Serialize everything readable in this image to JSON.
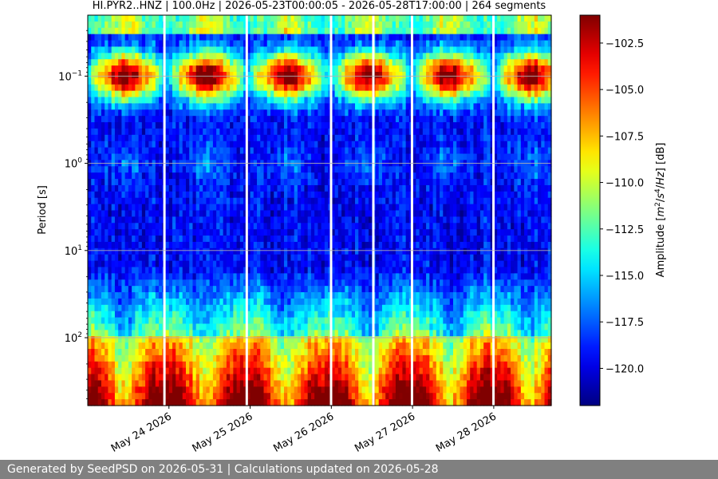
{
  "chart_data": {
    "type": "heatmap",
    "title": "HI.PYR2..HNZ | 100.0Hz | 2026-05-23T00:00:05 - 2026-05-28T17:00:00 | 264 segments",
    "xlabel": "",
    "ylabel": "Period [s]",
    "x_range": [
      "2026-05-23T00:00:05",
      "2026-05-28T17:00:00"
    ],
    "x_ticks": [
      {
        "date": "2026-05-24T00:00:00",
        "label": "May 24 2026"
      },
      {
        "date": "2026-05-25T00:00:00",
        "label": "May 25 2026"
      },
      {
        "date": "2026-05-26T00:00:00",
        "label": "May 26 2026"
      },
      {
        "date": "2026-05-27T00:00:00",
        "label": "May 27 2026"
      },
      {
        "date": "2026-05-28T00:00:00",
        "label": "May 28 2026"
      }
    ],
    "y_scale": "log",
    "y_inverted": true,
    "y_range": [
      0.02,
      600
    ],
    "y_ticks": [
      {
        "value": 0.1,
        "base": "10",
        "exp": "−1"
      },
      {
        "value": 1,
        "base": "10",
        "exp": "0"
      },
      {
        "value": 10,
        "base": "10",
        "exp": "1"
      },
      {
        "value": 100,
        "base": "10",
        "exp": "2"
      }
    ],
    "grid": true,
    "segments": 264,
    "data_gaps": [
      "2026-05-23T22:40",
      "2026-05-24T23:00",
      "2026-05-25T23:55",
      "2026-05-26T12:25",
      "2026-05-26T23:50",
      "2026-05-27T23:55"
    ],
    "colormap": "jet",
    "colorbar": {
      "label_prefix": "Amplitude [",
      "label_math": "m",
      "label_suffix": "] [dB]",
      "range": [
        -122,
        -101
      ],
      "ticks": [
        {
          "value": -102.5,
          "label": "−102.5"
        },
        {
          "value": -105.0,
          "label": "−105.0"
        },
        {
          "value": -107.5,
          "label": "−107.5"
        },
        {
          "value": -110.0,
          "label": "−110.0"
        },
        {
          "value": -112.5,
          "label": "−112.5"
        },
        {
          "value": -115.0,
          "label": "−115.0"
        },
        {
          "value": -117.5,
          "label": "−117.5"
        },
        {
          "value": -120.0,
          "label": "−120.0"
        }
      ]
    }
  },
  "footer": {
    "text": "Generated by SeedPSD on 2026-05-31 | Calculations updated on 2026-05-28"
  },
  "colors": {
    "footer_bg": "#808080",
    "footer_text": "#ffffff",
    "grid": "#b0b0b0",
    "gap": "#ffffff"
  }
}
